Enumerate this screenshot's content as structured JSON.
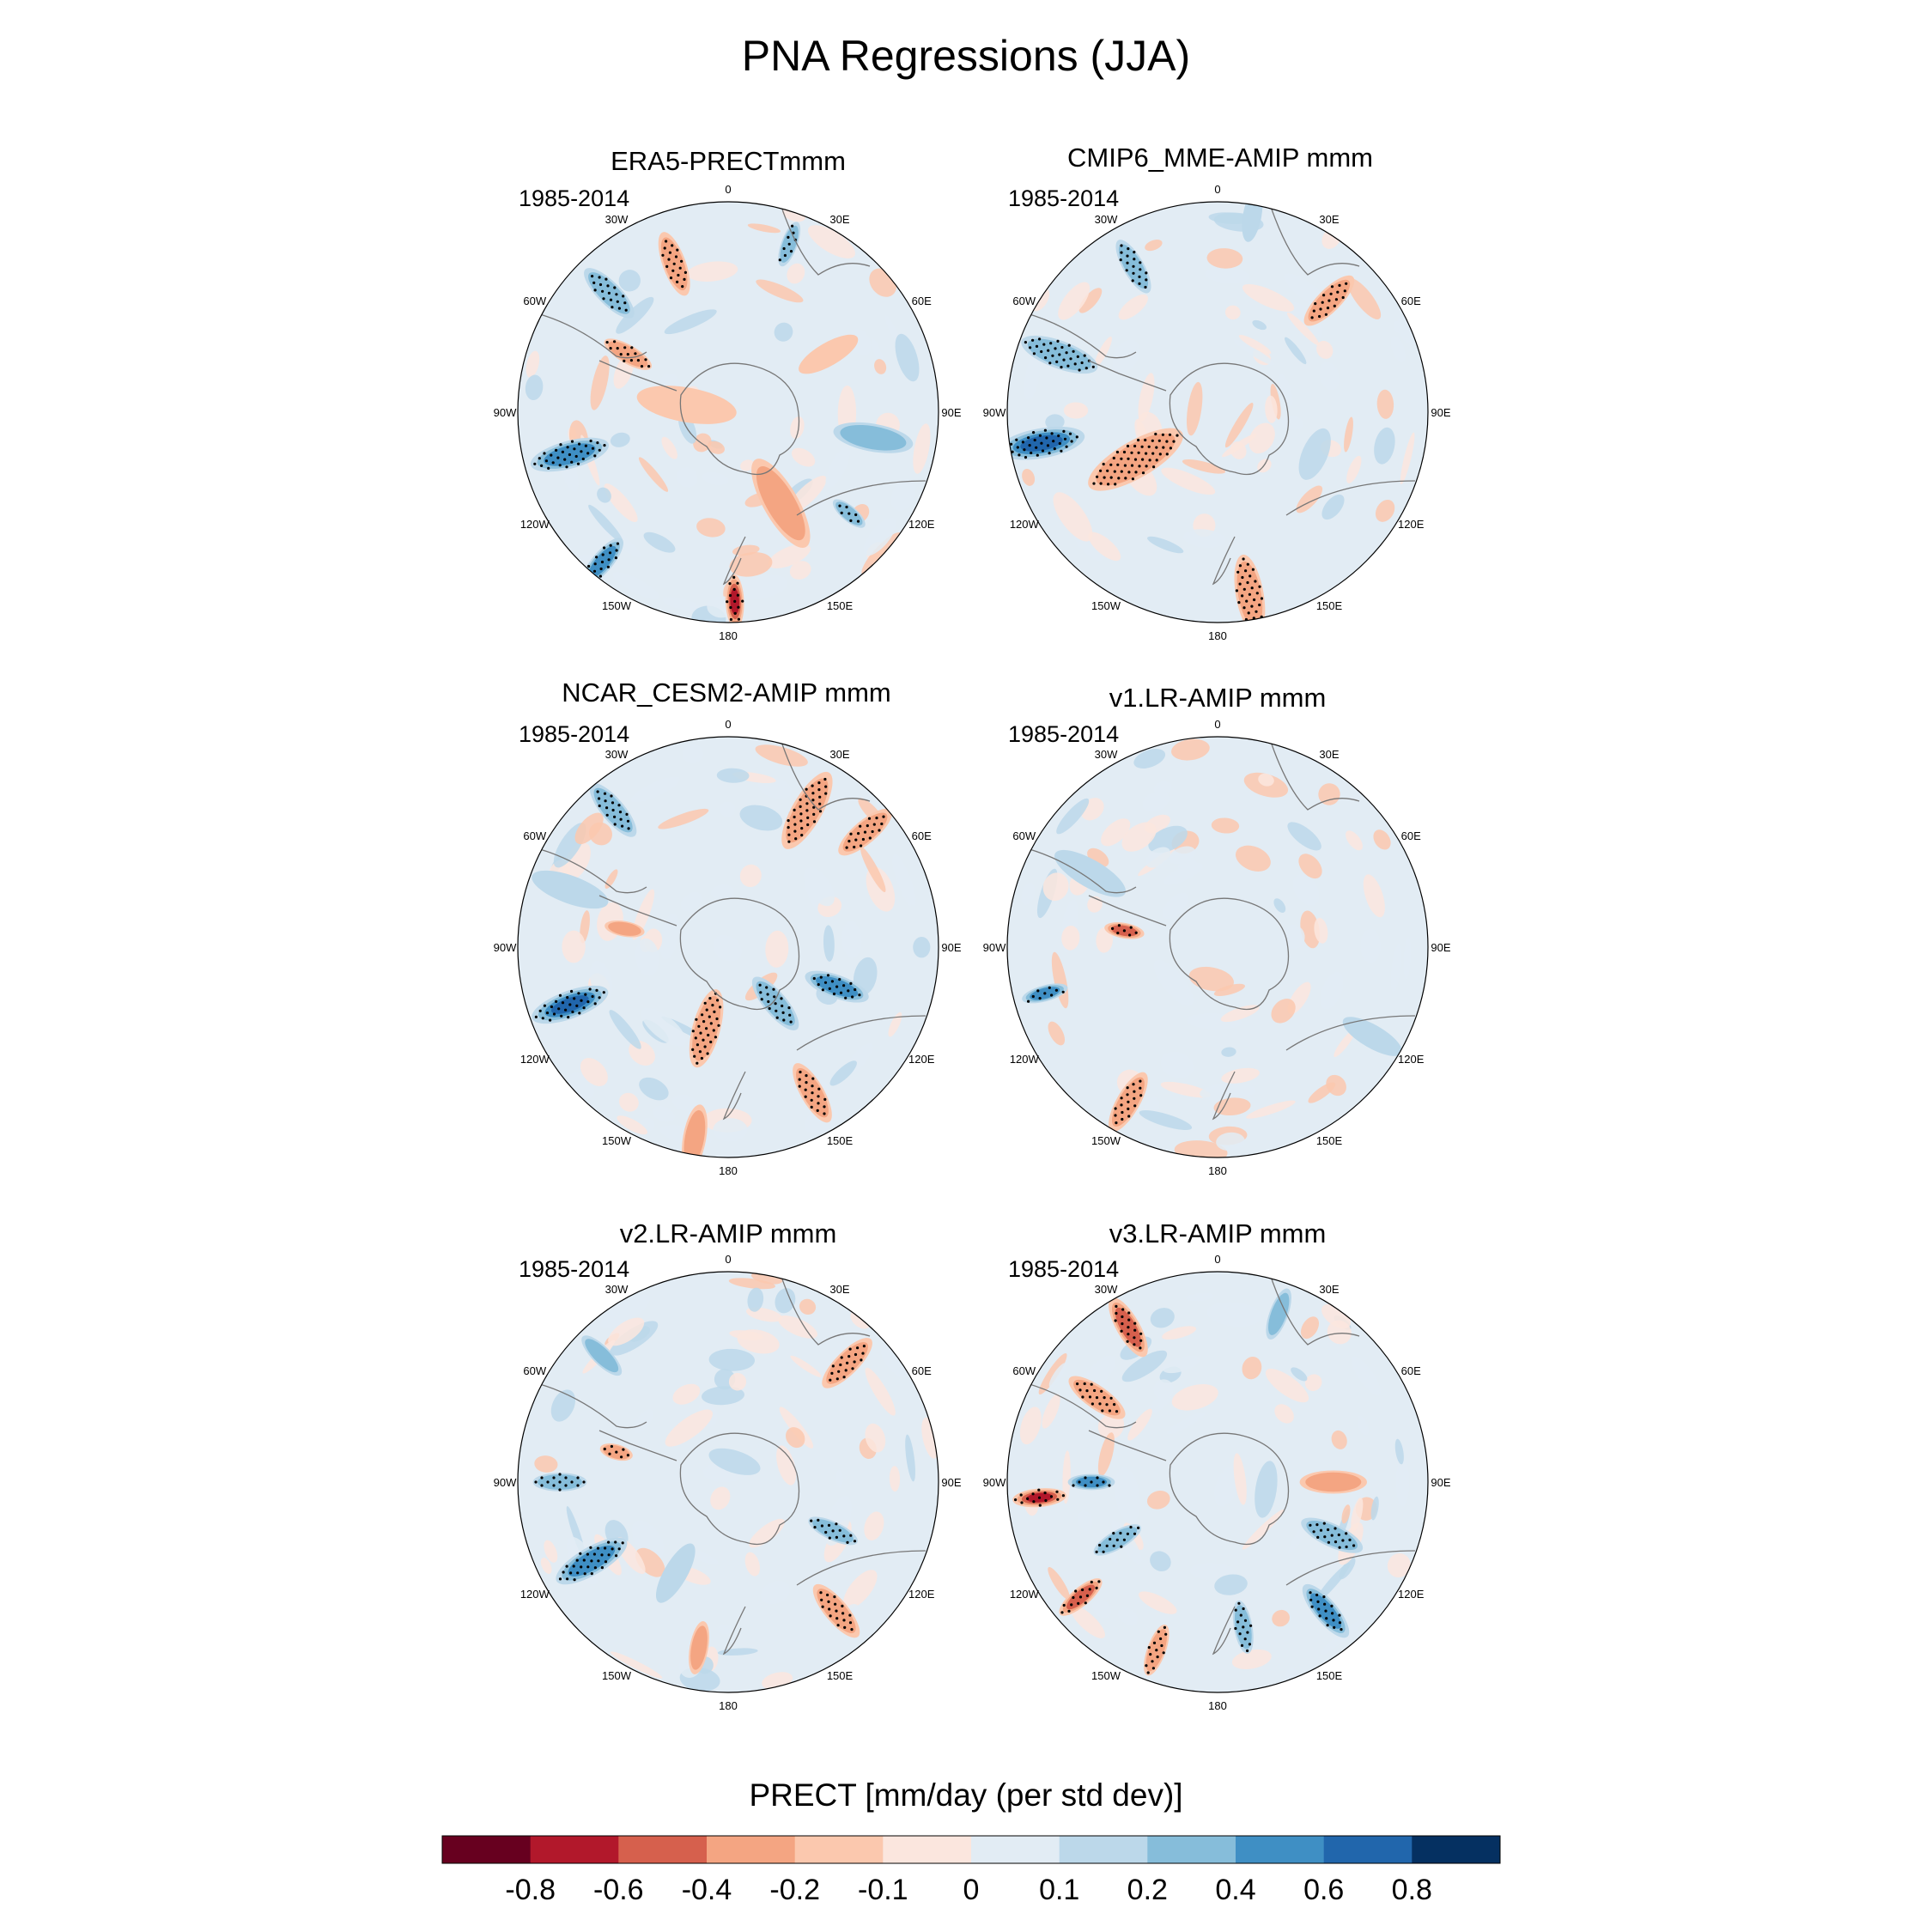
{
  "title": "PNA Regressions (JJA)",
  "colorbar": {
    "label": "PRECT [mm/day (per std dev)]",
    "ticks": [
      "-0.8",
      "-0.6",
      "-0.4",
      "-0.2",
      "-0.1",
      "0",
      "0.1",
      "0.2",
      "0.4",
      "0.6",
      "0.8"
    ],
    "colors": [
      "#67001f",
      "#b2182b",
      "#d6604d",
      "#f4a582",
      "#fbc8ae",
      "#fbe6de",
      "#e2ecf4",
      "#bcd8ea",
      "#86bdda",
      "#3f8fc4",
      "#2166ac",
      "#053061"
    ]
  },
  "panels": [
    {
      "title": "ERA5-PRECTmmm",
      "period": "1985-2014"
    },
    {
      "title": "CMIP6_MME-AMIP  mmm",
      "period": "1985-2014"
    },
    {
      "title": "NCAR_CESM2-AMIP  mmm",
      "period": "1985-2014"
    },
    {
      "title": "v1.LR-AMIP  mmm",
      "period": "1985-2014"
    },
    {
      "title": "v2.LR-AMIP  mmm",
      "period": "1985-2014"
    },
    {
      "title": "v3.LR-AMIP  mmm",
      "period": "1985-2014"
    }
  ],
  "longitude_labels": [
    "0",
    "30E",
    "60E",
    "90E",
    "120E",
    "150E",
    "180",
    "150W",
    "120W",
    "90W",
    "60W",
    "30W"
  ],
  "chart_data": {
    "type": "heatmap",
    "title": "PNA Regressions (JJA)",
    "variable": "PRECT",
    "units": "mm/day (per std dev)",
    "projection": "south polar stereographic",
    "levels": [
      -0.8,
      -0.6,
      -0.4,
      -0.2,
      -0.1,
      0,
      0.1,
      0.2,
      0.4,
      0.6,
      0.8
    ],
    "panels": [
      {
        "name": "ERA5-PRECTmmm",
        "period": "1985-2014",
        "features": [
          {
            "lon": -105,
            "r": 0.78,
            "v": 0.55,
            "s": 0.12
          },
          {
            "lon": -140,
            "r": 0.93,
            "v": 0.5,
            "s": 0.09
          },
          {
            "lon": 178,
            "r": 0.9,
            "v": -0.7,
            "s": 0.08
          },
          {
            "lon": -45,
            "r": 0.8,
            "v": 0.3,
            "s": 0.1
          },
          {
            "lon": -20,
            "r": 0.75,
            "v": -0.3,
            "s": 0.1
          },
          {
            "lon": -60,
            "r": 0.55,
            "v": -0.25,
            "s": 0.08
          },
          {
            "lon": 150,
            "r": 0.5,
            "v": -0.2,
            "s": 0.15
          },
          {
            "lon": 20,
            "r": 0.85,
            "v": 0.25,
            "s": 0.07
          },
          {
            "lon": 100,
            "r": 0.7,
            "v": 0.2,
            "s": 0.12
          },
          {
            "lon": -80,
            "r": 0.2,
            "v": -0.15,
            "s": 0.15
          },
          {
            "lon": 130,
            "r": 0.75,
            "v": 0.3,
            "s": 0.06
          },
          {
            "lon": 60,
            "r": 0.55,
            "v": -0.12,
            "s": 0.1
          }
        ]
      },
      {
        "name": "CMIP6_MME-AMIP  mmm",
        "period": "1985-2014",
        "features": [
          {
            "lon": -100,
            "r": 0.85,
            "v": 0.65,
            "s": 0.13
          },
          {
            "lon": -70,
            "r": 0.8,
            "v": 0.35,
            "s": 0.12
          },
          {
            "lon": -30,
            "r": 0.8,
            "v": 0.3,
            "s": 0.09
          },
          {
            "lon": -120,
            "r": 0.45,
            "v": -0.25,
            "s": 0.16
          },
          {
            "lon": 170,
            "r": 0.88,
            "v": -0.3,
            "s": 0.12
          },
          {
            "lon": 45,
            "r": 0.75,
            "v": -0.25,
            "s": 0.1
          },
          {
            "lon": 10,
            "r": 0.95,
            "v": 0.15,
            "s": 0.08
          },
          {
            "lon": 130,
            "r": 0.6,
            "v": 0.05,
            "s": 0.2
          },
          {
            "lon": 90,
            "r": 0.75,
            "v": -0.05,
            "s": 0.2
          }
        ]
      },
      {
        "name": "NCAR_CESM2-AMIP  mmm",
        "period": "1985-2014",
        "features": [
          {
            "lon": -110,
            "r": 0.8,
            "v": 0.7,
            "s": 0.12
          },
          {
            "lon": 30,
            "r": 0.75,
            "v": -0.3,
            "s": 0.13
          },
          {
            "lon": 50,
            "r": 0.85,
            "v": -0.25,
            "s": 0.1
          },
          {
            "lon": 150,
            "r": 0.8,
            "v": -0.35,
            "s": 0.1
          },
          {
            "lon": 140,
            "r": 0.35,
            "v": 0.3,
            "s": 0.1
          },
          {
            "lon": 110,
            "r": 0.55,
            "v": 0.4,
            "s": 0.1
          },
          {
            "lon": -165,
            "r": 0.4,
            "v": -0.25,
            "s": 0.12
          },
          {
            "lon": -40,
            "r": 0.85,
            "v": 0.25,
            "s": 0.1
          },
          {
            "lon": -70,
            "r": 0.8,
            "v": 0.1,
            "s": 0.12
          },
          {
            "lon": -80,
            "r": 0.5,
            "v": -0.2,
            "s": 0.06
          },
          {
            "lon": -170,
            "r": 0.92,
            "v": -0.2,
            "s": 0.1
          }
        ]
      },
      {
        "name": "v1.LR-AMIP  mmm",
        "period": "1985-2014",
        "features": [
          {
            "lon": -105,
            "r": 0.85,
            "v": 0.45,
            "s": 0.07
          },
          {
            "lon": -150,
            "r": 0.85,
            "v": -0.3,
            "s": 0.1
          },
          {
            "lon": -80,
            "r": 0.45,
            "v": -0.4,
            "s": 0.06
          },
          {
            "lon": -60,
            "r": 0.7,
            "v": 0.15,
            "s": 0.12
          },
          {
            "lon": 0,
            "r": 0.5,
            "v": 0.08,
            "s": 0.3
          },
          {
            "lon": 100,
            "r": 0.6,
            "v": -0.08,
            "s": 0.25
          },
          {
            "lon": 120,
            "r": 0.85,
            "v": 0.15,
            "s": 0.1
          }
        ]
      },
      {
        "name": "v2.LR-AMIP  mmm",
        "period": "1985-2014",
        "features": [
          {
            "lon": -120,
            "r": 0.75,
            "v": 0.45,
            "s": 0.12
          },
          {
            "lon": -90,
            "r": 0.8,
            "v": 0.3,
            "s": 0.08
          },
          {
            "lon": 140,
            "r": 0.8,
            "v": -0.35,
            "s": 0.1
          },
          {
            "lon": 45,
            "r": 0.8,
            "v": -0.3,
            "s": 0.1
          },
          {
            "lon": 115,
            "r": 0.55,
            "v": 0.35,
            "s": 0.08
          },
          {
            "lon": -170,
            "r": 0.8,
            "v": -0.2,
            "s": 0.08
          },
          {
            "lon": -75,
            "r": 0.55,
            "v": -0.3,
            "s": 0.05
          },
          {
            "lon": -45,
            "r": 0.85,
            "v": 0.2,
            "s": 0.08
          },
          {
            "lon": -150,
            "r": 0.5,
            "v": 0.15,
            "s": 0.1
          }
        ]
      },
      {
        "name": "v3.LR-AMIP  mmm",
        "period": "1985-2014",
        "features": [
          {
            "lon": -95,
            "r": 0.85,
            "v": -0.75,
            "s": 0.08
          },
          {
            "lon": -90,
            "r": 0.6,
            "v": 0.4,
            "s": 0.07
          },
          {
            "lon": -30,
            "r": 0.85,
            "v": -0.45,
            "s": 0.1
          },
          {
            "lon": -55,
            "r": 0.7,
            "v": -0.35,
            "s": 0.1
          },
          {
            "lon": 140,
            "r": 0.8,
            "v": 0.5,
            "s": 0.1
          },
          {
            "lon": 115,
            "r": 0.6,
            "v": 0.35,
            "s": 0.1
          },
          {
            "lon": -130,
            "r": 0.85,
            "v": -0.45,
            "s": 0.08
          },
          {
            "lon": -160,
            "r": 0.85,
            "v": -0.3,
            "s": 0.08
          },
          {
            "lon": 170,
            "r": 0.7,
            "v": 0.3,
            "s": 0.08
          },
          {
            "lon": -120,
            "r": 0.55,
            "v": 0.25,
            "s": 0.08
          },
          {
            "lon": 20,
            "r": 0.85,
            "v": 0.2,
            "s": 0.08
          },
          {
            "lon": 90,
            "r": 0.55,
            "v": -0.2,
            "s": 0.1
          }
        ]
      }
    ]
  }
}
